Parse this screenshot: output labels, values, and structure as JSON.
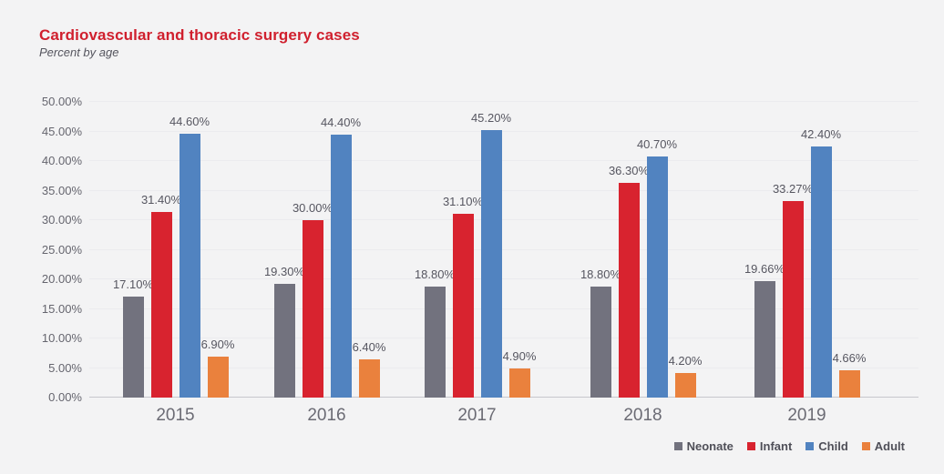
{
  "chart_data": {
    "type": "bar",
    "title": "Cardiovascular and thoracic surgery cases",
    "subtitle": "Percent by age",
    "categories": [
      "2015",
      "2016",
      "2017",
      "2018",
      "2019"
    ],
    "series": [
      {
        "name": "Neonate",
        "color": "#72727e",
        "values": [
          17.1,
          19.3,
          18.8,
          18.8,
          19.66
        ],
        "value_labels": [
          "17.10%",
          "19.30%",
          "18.80%",
          "18.80%",
          "19.66%"
        ]
      },
      {
        "name": "Infant",
        "color": "#d8232f",
        "values": [
          31.4,
          30.0,
          31.1,
          36.3,
          33.27
        ],
        "value_labels": [
          "31.40%",
          "30.00%",
          "31.10%",
          "36.30%",
          "33.27%"
        ]
      },
      {
        "name": "Child",
        "color": "#5183c0",
        "values": [
          44.6,
          44.4,
          45.2,
          40.7,
          42.4
        ],
        "value_labels": [
          "44.60%",
          "44.40%",
          "45.20%",
          "40.70%",
          "42.40%"
        ]
      },
      {
        "name": "Adult",
        "color": "#ea813d",
        "values": [
          6.9,
          6.4,
          4.9,
          4.2,
          4.66
        ],
        "value_labels": [
          "6.90%",
          "6.40%",
          "4.90%",
          "4.20%",
          "4.66%"
        ]
      }
    ],
    "y_axis": {
      "min": 0,
      "max": 50,
      "step": 5,
      "tick_labels_bottom_up": [
        "0.00%",
        "5.00%",
        "10.00%",
        "15.00%",
        "20.00%",
        "25.00%",
        "30.00%",
        "35.00%",
        "40.00%",
        "45.00%",
        "50.00%"
      ]
    },
    "ylim": [
      0,
      50
    ],
    "grid": true,
    "legend": {
      "position": "bottom-right",
      "items": [
        "Neonate",
        "Infant",
        "Child",
        "Adult"
      ]
    }
  },
  "colors": {
    "background": "#f3f3f4",
    "title": "#d0202e",
    "subtitle_text": "#55555e",
    "axis_tick_text": "#65656e",
    "category_text": "#6b6b74",
    "value_label_text": "#565660",
    "legend_text": "#4f4f58",
    "gridline": "#ebebee",
    "axis_line": "#c7c7cd"
  }
}
